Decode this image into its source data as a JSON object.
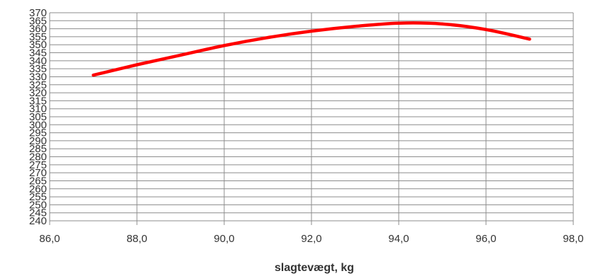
{
  "chart_data": {
    "type": "line",
    "title": "",
    "xlabel": "slagtevægt, kg",
    "ylabel": "",
    "xlim": [
      86,
      98
    ],
    "ylim": [
      240,
      370
    ],
    "x_ticks": [
      "86,0",
      "88,0",
      "90,0",
      "92,0",
      "94,0",
      "96,0",
      "98,0"
    ],
    "y_ticks": [
      "240",
      "245",
      "250",
      "255",
      "260",
      "265",
      "270",
      "275",
      "280",
      "285",
      "290",
      "295",
      "300",
      "305",
      "310",
      "315",
      "320",
      "325",
      "330",
      "335",
      "340",
      "345",
      "350",
      "355",
      "360",
      "365",
      "370"
    ],
    "grid": true,
    "legend": "none",
    "series": [
      {
        "color": "#ff0000",
        "x": [
          87,
          88,
          89,
          90,
          91,
          92,
          93,
          94,
          95,
          96,
          97
        ],
        "values": [
          331,
          337.5,
          343.5,
          349.5,
          354.5,
          358.5,
          361.5,
          363.5,
          363,
          359.5,
          353.5
        ]
      }
    ]
  }
}
